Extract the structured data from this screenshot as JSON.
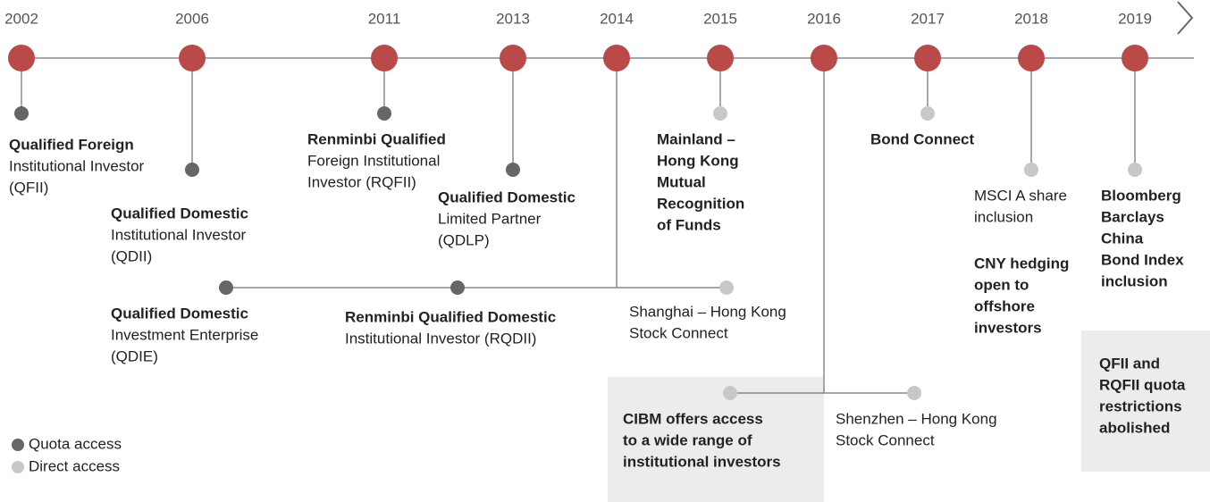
{
  "years": [
    "2002",
    "2006",
    "2011",
    "2013",
    "2014",
    "2015",
    "2016",
    "2017",
    "2018",
    "2019"
  ],
  "events": [
    {
      "lines": [
        "Qualified Foreign",
        "Institutional Investor",
        "(QFII)"
      ]
    },
    {
      "lines": [
        "Qualified Domestic",
        "Institutional Investor",
        "(QDII)"
      ]
    },
    {
      "lines": [
        "Qualified Domestic",
        "Investment Enterprise",
        "(QDIE)"
      ]
    },
    {
      "lines": [
        "Renminbi Qualified",
        "Foreign Institutional",
        "Investor (RQFII)"
      ]
    },
    {
      "lines": [
        "Qualified Domestic",
        "Limited Partner",
        "(QDLP)"
      ]
    },
    {
      "lines": [
        "Renminbi Qualified Domestic",
        "Institutional Investor (RQDII)"
      ]
    },
    {
      "lines": [
        "Shanghai – Hong Kong",
        "Stock Connect"
      ]
    },
    {
      "lines": [
        "Mainland –",
        "Hong Kong",
        "Mutual",
        "Recognition",
        "of Funds"
      ]
    },
    {
      "lines": [
        "CIBM offers access",
        "to a wide range of",
        "institutional investors"
      ]
    },
    {
      "lines": [
        "Shenzhen – Hong Kong",
        "Stock Connect"
      ]
    },
    {
      "lines": [
        "Bond Connect"
      ]
    },
    {
      "lines": [
        "MSCI A share",
        "inclusion"
      ]
    },
    {
      "lines": [
        "CNY hedging",
        "open to",
        "offshore",
        "investors"
      ]
    },
    {
      "lines": [
        "Bloomberg",
        "Barclays",
        "China",
        "Bond Index",
        "inclusion"
      ]
    },
    {
      "lines": [
        "QFII and",
        "RQFII quota",
        "restrictions",
        "abolished"
      ]
    }
  ],
  "legend": [
    "Quota access",
    "Direct access"
  ]
}
